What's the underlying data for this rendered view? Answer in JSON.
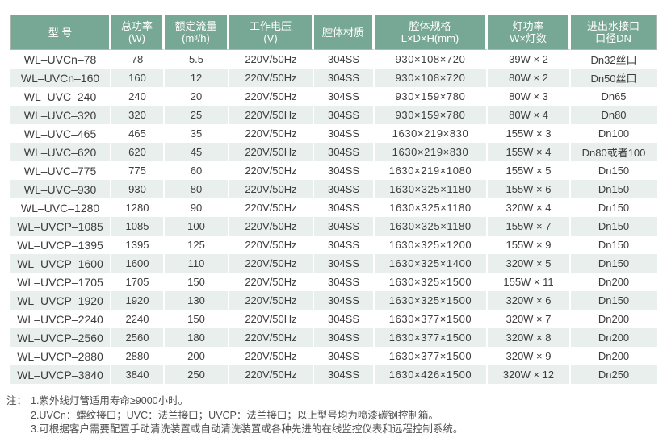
{
  "table": {
    "col_keys": [
      "model",
      "total-power",
      "rated-flow",
      "voltage",
      "material",
      "dimensions",
      "lamp-power",
      "connection"
    ],
    "headers": [
      [
        "型 号"
      ],
      [
        "总功率",
        "(W)"
      ],
      [
        "额定流量",
        "(m³/h)"
      ],
      [
        "工作电压",
        "(V)"
      ],
      [
        "腔体材质"
      ],
      [
        "腔体规格",
        "L×D×H(mm)"
      ],
      [
        "灯功率",
        "W×灯数"
      ],
      [
        "进出水接口",
        "口径DN"
      ]
    ],
    "rows": [
      [
        "WL–UVCn–78",
        "78",
        "5.5",
        "220V/50Hz",
        "304SS",
        "930×108×720",
        "39W × 2",
        "Dn32丝口"
      ],
      [
        "WL–UVCn–160",
        "160",
        "12",
        "220V/50Hz",
        "304SS",
        "930×108×720",
        "80W × 2",
        "Dn50丝口"
      ],
      [
        "WL–UVC–240",
        "240",
        "20",
        "220V/50Hz",
        "304SS",
        "930×159×780",
        "80W × 3",
        "Dn65"
      ],
      [
        "WL–UVC–320",
        "320",
        "25",
        "220V/50Hz",
        "304SS",
        "930×159×780",
        "80W × 4",
        "Dn80"
      ],
      [
        "WL–UVC–465",
        "465",
        "35",
        "220V/50Hz",
        "304SS",
        "1630×219×830",
        "155W × 3",
        "Dn100"
      ],
      [
        "WL–UVC–620",
        "620",
        "45",
        "220V/50Hz",
        "304SS",
        "1630×219×830",
        "155W × 4",
        "Dn80或者100"
      ],
      [
        "WL–UVC–775",
        "775",
        "60",
        "220V/50Hz",
        "304SS",
        "1630×219×1080",
        "155W × 5",
        "Dn150"
      ],
      [
        "WL–UVC–930",
        "930",
        "80",
        "220V/50Hz",
        "304SS",
        "1630×325×1180",
        "155W × 6",
        "Dn150"
      ],
      [
        "WL–UVC–1280",
        "1280",
        "90",
        "220V/50Hz",
        "304SS",
        "1630×325×1180",
        "320W × 4",
        "Dn150"
      ],
      [
        "WL–UVCP–1085",
        "1085",
        "100",
        "220V/50Hz",
        "304SS",
        "1630×325×1180",
        "155W × 7",
        "Dn150"
      ],
      [
        "WL–UVCP–1395",
        "1395",
        "125",
        "220V/50Hz",
        "304SS",
        "1630×325×1200",
        "155W × 9",
        "Dn150"
      ],
      [
        "WL–UVCP–1600",
        "1600",
        "110",
        "220V/50Hz",
        "304SS",
        "1630×325×1400",
        "320W × 5",
        "Dn150"
      ],
      [
        "WL–UVCP–1705",
        "1705",
        "150",
        "220V/50Hz",
        "304SS",
        "1630×325×1500",
        "155W × 11",
        "Dn200"
      ],
      [
        "WL–UVCP–1920",
        "1920",
        "130",
        "220V/50Hz",
        "304SS",
        "1630×325×1500",
        "320W × 6",
        "Dn150"
      ],
      [
        "WL–UVCP–2240",
        "2240",
        "150",
        "220V/50Hz",
        "304SS",
        "1630×377×1500",
        "320W × 7",
        "Dn200"
      ],
      [
        "WL–UVCP–2560",
        "2560",
        "180",
        "220V/50Hz",
        "304SS",
        "1630×377×1500",
        "320W × 8",
        "Dn200"
      ],
      [
        "WL–UVCP–2880",
        "2880",
        "200",
        "220V/50Hz",
        "304SS",
        "1630×377×1500",
        "320W × 9",
        "Dn200"
      ],
      [
        "WL–UVCP–3840",
        "3840",
        "250",
        "220V/50Hz",
        "304SS",
        "1630×426×1500",
        "320W × 12",
        "Dn250"
      ]
    ]
  },
  "notes": {
    "label": "注：",
    "items": [
      "1.紫外线灯管适用寿命≥9000小时。",
      "2.UVCn：螺纹接口；UVC：法兰接口；UVCP：法兰接口；以上型号均为喷漆碳钢控制箱。",
      "3.可根据客户需要配置手动清洗装置或自动清洗装置或各种先进的在线监控仪表和远程控制系统。"
    ]
  },
  "colors": {
    "header_bg": "#77a795",
    "header_text": "#ffffff",
    "row_alt_bg": "#e9efec",
    "body_text": "#3d3d3d"
  }
}
